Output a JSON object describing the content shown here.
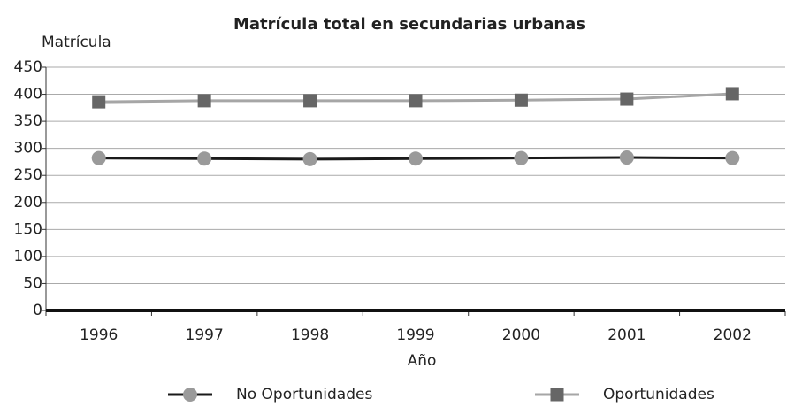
{
  "chart_data": {
    "type": "line",
    "title": "Matrícula total en secundarias urbanas",
    "y_label": "Matrícula",
    "x_label": "Año",
    "categories": [
      "1996",
      "1997",
      "1998",
      "1999",
      "2000",
      "2001",
      "2002"
    ],
    "series": [
      {
        "name": "No Oportunidades",
        "color": "#1a1a1a",
        "marker_color": "#9a9a9a",
        "marker": "circle",
        "values": [
          282,
          281,
          280,
          281,
          282,
          283,
          282
        ]
      },
      {
        "name": "Oportunidades",
        "color": "#a6a6a6",
        "marker_color": "#666666",
        "marker": "square",
        "values": [
          386,
          388,
          388,
          388,
          389,
          391,
          401
        ]
      }
    ],
    "ylim": [
      0,
      450
    ],
    "yticks": [
      0,
      50,
      100,
      150,
      200,
      250,
      300,
      350,
      400,
      450
    ],
    "grid": true
  }
}
